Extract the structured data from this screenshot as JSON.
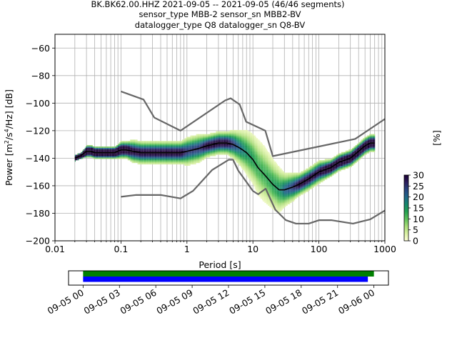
{
  "title": {
    "line1": "BK.BK62.00.HHZ   2021-09-05 -- 2021-09-05  (46/46 segments)",
    "line2": "sensor_type MBB-2 sensor_sn MBB2-BV",
    "line3": "datalogger_type Q8 datalogger_sn Q8-BV"
  },
  "chart_data": [
    {
      "type": "heatmap",
      "xlabel": "Period [s]",
      "ylabel": "Power [m²/s⁴/Hz] [dB]",
      "xscale": "log",
      "xlim": [
        0.01,
        1000
      ],
      "ylim": [
        -200,
        -50
      ],
      "x_ticks": [
        0.01,
        0.1,
        1,
        10,
        100,
        1000
      ],
      "x_tick_labels": [
        "0.01",
        "0.1",
        "1",
        "10",
        "100",
        "1000"
      ],
      "y_ticks": [
        -200,
        -180,
        -160,
        -140,
        -120,
        -100,
        -80,
        -60
      ],
      "y_tick_labels": [
        "−200",
        "−180",
        "−160",
        "−140",
        "−120",
        "−100",
        "−80",
        "−60"
      ],
      "grid": true,
      "colorbar": {
        "label": "[%]",
        "ticks": [
          0,
          5,
          10,
          15,
          20,
          25,
          30
        ],
        "tick_labels": [
          "0",
          "5",
          "10",
          "15",
          "20",
          "25",
          "30"
        ],
        "range": [
          0,
          30
        ],
        "colormap": [
          "#ffffd9",
          "#d9f0a3",
          "#a8dc78",
          "#5cc05a",
          "#23a050",
          "#15866c",
          "#1f6688",
          "#27447f",
          "#2b1d5c",
          "#1a0033"
        ]
      },
      "series": [
        {
          "name": "mean",
          "color": "#000000",
          "x": [
            0.02,
            0.025,
            0.03,
            0.035,
            0.04,
            0.05,
            0.06,
            0.08,
            0.1,
            0.12,
            0.15,
            0.2,
            0.3,
            0.5,
            0.8,
            1,
            1.5,
            2,
            3,
            4,
            5,
            6,
            7,
            8,
            10,
            12,
            15,
            20,
            25,
            30,
            40,
            50,
            70,
            100,
            150,
            200,
            300,
            400,
            500,
            600,
            700
          ],
          "y": [
            -140,
            -138,
            -135,
            -135,
            -136,
            -136,
            -136,
            -136,
            -134,
            -134,
            -135,
            -136,
            -136,
            -136,
            -136,
            -135,
            -133,
            -131,
            -129,
            -129,
            -130,
            -132,
            -134,
            -136,
            -141,
            -147,
            -152,
            -159,
            -163,
            -163,
            -161,
            -159,
            -155,
            -150,
            -147,
            -143,
            -140,
            -135,
            -131,
            -129,
            -129
          ]
        },
        {
          "name": "high noise model",
          "color": "#666666",
          "x": [
            0.1,
            0.22,
            0.32,
            0.8,
            3.8,
            4.6,
            6.3,
            7.9,
            15.4,
            20,
            354.8,
            1000
          ],
          "y": [
            -91.5,
            -97.4,
            -110.5,
            -120,
            -98,
            -96.5,
            -101,
            -113.5,
            -120,
            -138.5,
            -126,
            -111.5
          ]
        },
        {
          "name": "low noise model",
          "color": "#666666",
          "x": [
            0.1,
            0.17,
            0.4,
            0.8,
            1.24,
            2.4,
            4.3,
            5,
            6,
            10,
            12,
            15.6,
            21.9,
            31.6,
            45,
            70,
            101,
            154,
            328.4,
            600,
            1000
          ],
          "y": [
            -168,
            -166.7,
            -166.7,
            -169.2,
            -163.7,
            -148.6,
            -141.1,
            -141.1,
            -149,
            -163.8,
            -166.2,
            -162.1,
            -177.5,
            -185,
            -187.5,
            -187.5,
            -185,
            -185,
            -187.5,
            -184.4,
            -178
          ]
        }
      ],
      "heatmap_path": {
        "x": [
          0.02,
          0.025,
          0.03,
          0.035,
          0.04,
          0.05,
          0.06,
          0.08,
          0.1,
          0.12,
          0.15,
          0.2,
          0.3,
          0.5,
          0.8,
          1,
          1.5,
          2,
          3,
          4,
          5,
          6,
          7,
          8,
          10,
          12,
          15,
          20,
          25,
          30,
          40,
          50,
          70,
          100,
          150,
          200,
          300,
          400,
          500,
          600,
          700
        ],
        "y": [
          -140,
          -138,
          -135,
          -135,
          -136,
          -136,
          -136,
          -136,
          -134,
          -134,
          -135,
          -136,
          -136,
          -136,
          -136,
          -135,
          -133,
          -131,
          -129,
          -129,
          -130,
          -132,
          -134,
          -136,
          -141,
          -147,
          -152,
          -159,
          -163,
          -163,
          -161,
          -159,
          -155,
          -150,
          -147,
          -143,
          -140,
          -135,
          -131,
          -129,
          -129
        ],
        "spread_db": [
          1,
          1,
          2,
          2,
          2,
          2,
          2,
          2,
          3,
          3,
          4,
          4,
          4,
          4,
          4,
          5,
          5,
          4,
          4,
          4,
          5,
          6,
          7,
          8,
          9,
          10,
          10,
          9,
          8,
          6,
          5,
          4,
          4,
          4,
          3,
          3,
          3,
          3,
          3,
          3,
          3
        ]
      }
    },
    {
      "type": "timeline",
      "x_tick_labels": [
        "09-05 00",
        "09-05 03",
        "09-05 06",
        "09-05 09",
        "09-05 12",
        "09-05 15",
        "09-05 18",
        "09-05 21",
        "09-06 00"
      ],
      "x_tick_hours": [
        0,
        3,
        6,
        9,
        12,
        15,
        18,
        21,
        24
      ],
      "xlim_hours": [
        -1.2,
        25.2
      ],
      "bars": [
        {
          "color": "#008000",
          "start_hour": 0,
          "end_hour": 24.0
        },
        {
          "color": "#0000ff",
          "start_hour": 0,
          "end_hour": 23.5
        }
      ]
    }
  ]
}
